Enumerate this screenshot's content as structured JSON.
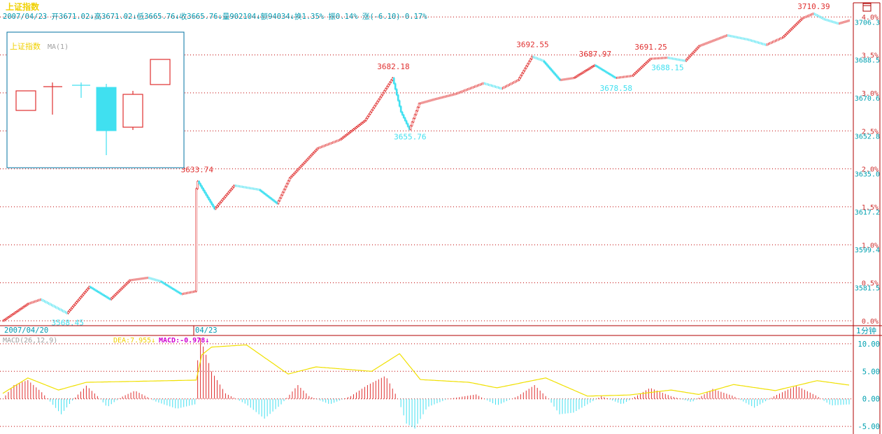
{
  "header": {
    "title": "上证指数",
    "info": "2007/04/23 开3671.02↓高3671.02↓低3665.76↓收3665.76↓量902104↓额94034↓换1.35% 振0.14% 涨(-6.10)-0.17%"
  },
  "inset": {
    "title": "上证指数",
    "ma": "MA(1)"
  },
  "time_axis": {
    "left_label": "2007/04/20",
    "mid_label": "04/23",
    "right_label": "1分钟"
  },
  "indicator": {
    "name": "MACD(26,12,9)",
    "dea_label": "DEA:7.955↓",
    "macd_label": "MACD:-0.978↓"
  },
  "colors": {
    "up": "#e03030",
    "down": "#40e0f0",
    "frame": "#b00000",
    "grid": "#c00000",
    "dea": "#f0e000",
    "title": "#f0d000",
    "macd_label": "#d000d0",
    "axis_text": "#00a0b0",
    "pct_text": "#d03030"
  },
  "chart_data": [
    {
      "type": "candlestick",
      "title": "上证指数",
      "x_start": "2007/04/20",
      "x_break": "04/23",
      "interval": "1分钟",
      "price_ticks": [
        3581.5,
        3599.4,
        3617.2,
        3635.0,
        3652.8,
        3670.6,
        3688.5,
        3706.3
      ],
      "pct_ticks": [
        "0.0%",
        "0.5%",
        "1.0%",
        "1.5%",
        "2.0%",
        "2.5%",
        "3.0%",
        "3.5%",
        "4.0%"
      ],
      "ylim": [
        3565.0,
        3712.0
      ],
      "annotations": [
        {
          "label": "3568.45",
          "value": 3568.45,
          "kind": "low"
        },
        {
          "label": "3633.74",
          "value": 3633.74,
          "kind": "high"
        },
        {
          "label": "3682.18",
          "value": 3682.18,
          "kind": "high"
        },
        {
          "label": "3655.76",
          "value": 3655.76,
          "kind": "low"
        },
        {
          "label": "3692.55",
          "value": 3692.55,
          "kind": "high"
        },
        {
          "label": "3687.97",
          "value": 3687.97,
          "kind": "high"
        },
        {
          "label": "3678.58",
          "value": 3678.58,
          "kind": "low"
        },
        {
          "label": "3691.25",
          "value": 3691.25,
          "kind": "high"
        },
        {
          "label": "3688.15",
          "value": 3688.15,
          "kind": "low"
        },
        {
          "label": "3710.39",
          "value": 3710.39,
          "kind": "high"
        }
      ],
      "path_keypoints": [
        [
          0,
          3566.0
        ],
        [
          18,
          3574.0
        ],
        [
          27,
          3576.0
        ],
        [
          46,
          3569.5
        ],
        [
          62,
          3582.0
        ],
        [
          77,
          3576.0
        ],
        [
          91,
          3585.0
        ],
        [
          104,
          3586.2
        ],
        [
          113,
          3584.5
        ],
        [
          128,
          3578.5
        ],
        [
          138,
          3579.8
        ],
        [
          139,
          3628.0
        ],
        [
          140,
          3631.5
        ],
        [
          152,
          3618.5
        ],
        [
          166,
          3629.5
        ],
        [
          184,
          3627.5
        ],
        [
          197,
          3621.0
        ],
        [
          206,
          3633.0
        ],
        [
          226,
          3647.0
        ],
        [
          242,
          3651.0
        ],
        [
          260,
          3660.0
        ],
        [
          280,
          3680.0
        ],
        [
          286,
          3664.0
        ],
        [
          292,
          3655.8
        ],
        [
          299,
          3668.0
        ],
        [
          310,
          3670.0
        ],
        [
          325,
          3672.5
        ],
        [
          345,
          3677.5
        ],
        [
          358,
          3675.0
        ],
        [
          370,
          3679.0
        ],
        [
          380,
          3690.0
        ],
        [
          388,
          3688.0
        ],
        [
          400,
          3679.0
        ],
        [
          410,
          3680.0
        ],
        [
          425,
          3686.0
        ],
        [
          440,
          3680.0
        ],
        [
          452,
          3681.0
        ],
        [
          465,
          3689.0
        ],
        [
          477,
          3689.5
        ],
        [
          490,
          3688.0
        ],
        [
          500,
          3695.0
        ],
        [
          520,
          3700.0
        ],
        [
          535,
          3698.0
        ],
        [
          548,
          3695.5
        ],
        [
          560,
          3699.0
        ],
        [
          574,
          3708.0
        ],
        [
          582,
          3710.2
        ],
        [
          590,
          3707.5
        ],
        [
          600,
          3705.5
        ],
        [
          608,
          3707.0
        ]
      ]
    },
    {
      "type": "macd",
      "title": "MACD(26,12,9)",
      "yticks": [
        -5.0,
        0.0,
        5.0,
        10.0
      ],
      "ylim": [
        -6.0,
        11.0
      ],
      "dea_current": 7.955,
      "macd_current": -0.978,
      "dea_keypoints": [
        [
          0,
          1.0
        ],
        [
          18,
          3.8
        ],
        [
          40,
          1.6
        ],
        [
          60,
          3.0
        ],
        [
          100,
          3.2
        ],
        [
          139,
          3.4
        ],
        [
          143,
          8.0
        ],
        [
          150,
          9.4
        ],
        [
          175,
          9.8
        ],
        [
          205,
          4.5
        ],
        [
          225,
          5.8
        ],
        [
          265,
          5.0
        ],
        [
          285,
          8.2
        ],
        [
          300,
          3.5
        ],
        [
          335,
          3.0
        ],
        [
          355,
          2.0
        ],
        [
          390,
          3.8
        ],
        [
          420,
          0.5
        ],
        [
          450,
          0.7
        ],
        [
          480,
          1.6
        ],
        [
          500,
          0.8
        ],
        [
          525,
          2.6
        ],
        [
          555,
          1.5
        ],
        [
          585,
          3.3
        ],
        [
          608,
          2.5
        ]
      ],
      "hist_keypoints": [
        [
          0,
          0.0
        ],
        [
          8,
          2.5
        ],
        [
          18,
          3.4
        ],
        [
          28,
          1.2
        ],
        [
          34,
          -0.5
        ],
        [
          42,
          -2.8
        ],
        [
          50,
          -0.3
        ],
        [
          60,
          2.4
        ],
        [
          68,
          0.5
        ],
        [
          75,
          -1.5
        ],
        [
          85,
          0.3
        ],
        [
          95,
          1.5
        ],
        [
          110,
          -0.5
        ],
        [
          125,
          -1.8
        ],
        [
          138,
          -1.0
        ],
        [
          139,
          5.0
        ],
        [
          142,
          11.0
        ],
        [
          150,
          5.0
        ],
        [
          160,
          1.0
        ],
        [
          175,
          -1.0
        ],
        [
          188,
          -3.6
        ],
        [
          200,
          -1.0
        ],
        [
          212,
          2.5
        ],
        [
          220,
          0.5
        ],
        [
          235,
          -1.0
        ],
        [
          250,
          0.5
        ],
        [
          262,
          2.5
        ],
        [
          275,
          4.2
        ],
        [
          284,
          0.0
        ],
        [
          290,
          -4.5
        ],
        [
          296,
          -5.4
        ],
        [
          305,
          -1.5
        ],
        [
          320,
          0.0
        ],
        [
          340,
          0.8
        ],
        [
          355,
          -1.2
        ],
        [
          370,
          0.5
        ],
        [
          382,
          2.5
        ],
        [
          392,
          0.0
        ],
        [
          400,
          -2.8
        ],
        [
          410,
          -2.5
        ],
        [
          420,
          -1.0
        ],
        [
          430,
          0.5
        ],
        [
          445,
          -1.0
        ],
        [
          465,
          2.0
        ],
        [
          480,
          0.5
        ],
        [
          495,
          -0.6
        ],
        [
          510,
          1.8
        ],
        [
          525,
          0.5
        ],
        [
          540,
          -1.6
        ],
        [
          555,
          0.6
        ],
        [
          570,
          2.4
        ],
        [
          585,
          0.5
        ],
        [
          595,
          -1.2
        ],
        [
          608,
          -1.0
        ]
      ]
    }
  ]
}
